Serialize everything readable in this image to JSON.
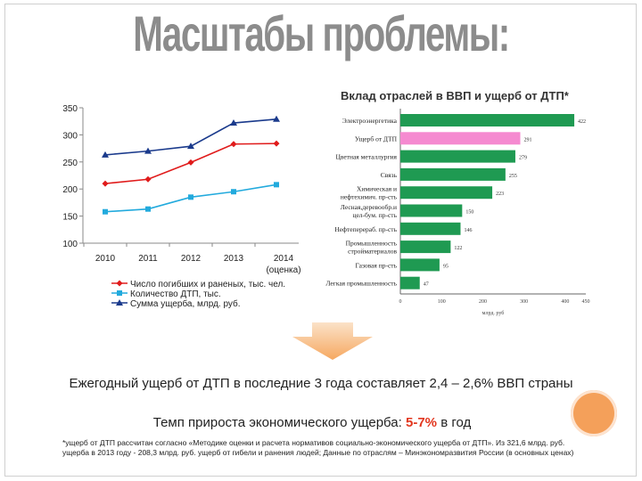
{
  "slide": {
    "title": "Масштабы проблемы:",
    "summary": "Ежегодный ущерб от ДТП в последние 3 года составляет 2,4 – 2,6% ВВП страны",
    "growth_prefix": "Темп прироста экономического ущерба:",
    "growth_value": "5-7%",
    "growth_suffix": "в год",
    "footnote": "*ущерб от ДТП рассчитан согласно «Методике оценки и расчета нормативов социально-экономического ущерба от ДТП». Из 321,6 млрд. руб. ущерба в 2013 году - 208,3 млрд. руб. ущерб от гибели и ранения людей; Данные по отраслям – Минэкономразвития России (в основных ценах)"
  },
  "colors": {
    "deaths": "#e01b1b",
    "accidents": "#22aadd",
    "damage": "#1a3a8c",
    "bar_green": "#1f9a52",
    "bar_pink": "#f58ad0"
  },
  "chart_data": [
    {
      "type": "line",
      "categories": [
        "2010",
        "2011",
        "2012",
        "2013",
        "2014\n(оценка)"
      ],
      "ylim": [
        100,
        350
      ],
      "yticks": [
        100,
        150,
        200,
        250,
        300,
        350
      ],
      "series": [
        {
          "name": "Число погибших и раненых, тыс. чел.",
          "values": [
            210,
            218,
            249,
            283,
            284
          ]
        },
        {
          "name": "Количество ДТП, тыс.",
          "values": [
            158,
            163,
            185,
            195,
            208
          ]
        },
        {
          "name": "Сумма ущерба, млрд. руб.",
          "values": [
            263,
            270,
            279,
            322,
            329
          ]
        }
      ]
    },
    {
      "type": "bar",
      "orientation": "horizontal",
      "title": "Вклад отраслей в ВВП и ущерб от ДТП*",
      "xlabel": "млрд. руб",
      "xlim": [
        0,
        450
      ],
      "xticks": [
        0,
        100,
        200,
        300,
        400,
        450
      ],
      "categories": [
        "Электроэнергетика",
        "Ущерб от ДТП",
        "Цветная металлургия",
        "Связь",
        "Химическая и нефтехимич. пр-сть",
        "Лесная,деревообр.и цел-бум. пр-сть",
        "Нефтеперераб. пр-сть",
        "Промышленность стройматериалов",
        "Газовая пр-сть",
        "Легкая промышленность"
      ],
      "values": [
        422,
        291,
        279,
        255,
        223,
        150,
        146,
        122,
        95,
        47
      ],
      "value_labels": [
        "422",
        "291",
        "279",
        "255",
        "223",
        "150",
        "146",
        "122",
        "95",
        "47"
      ],
      "highlight_index": 1
    }
  ]
}
